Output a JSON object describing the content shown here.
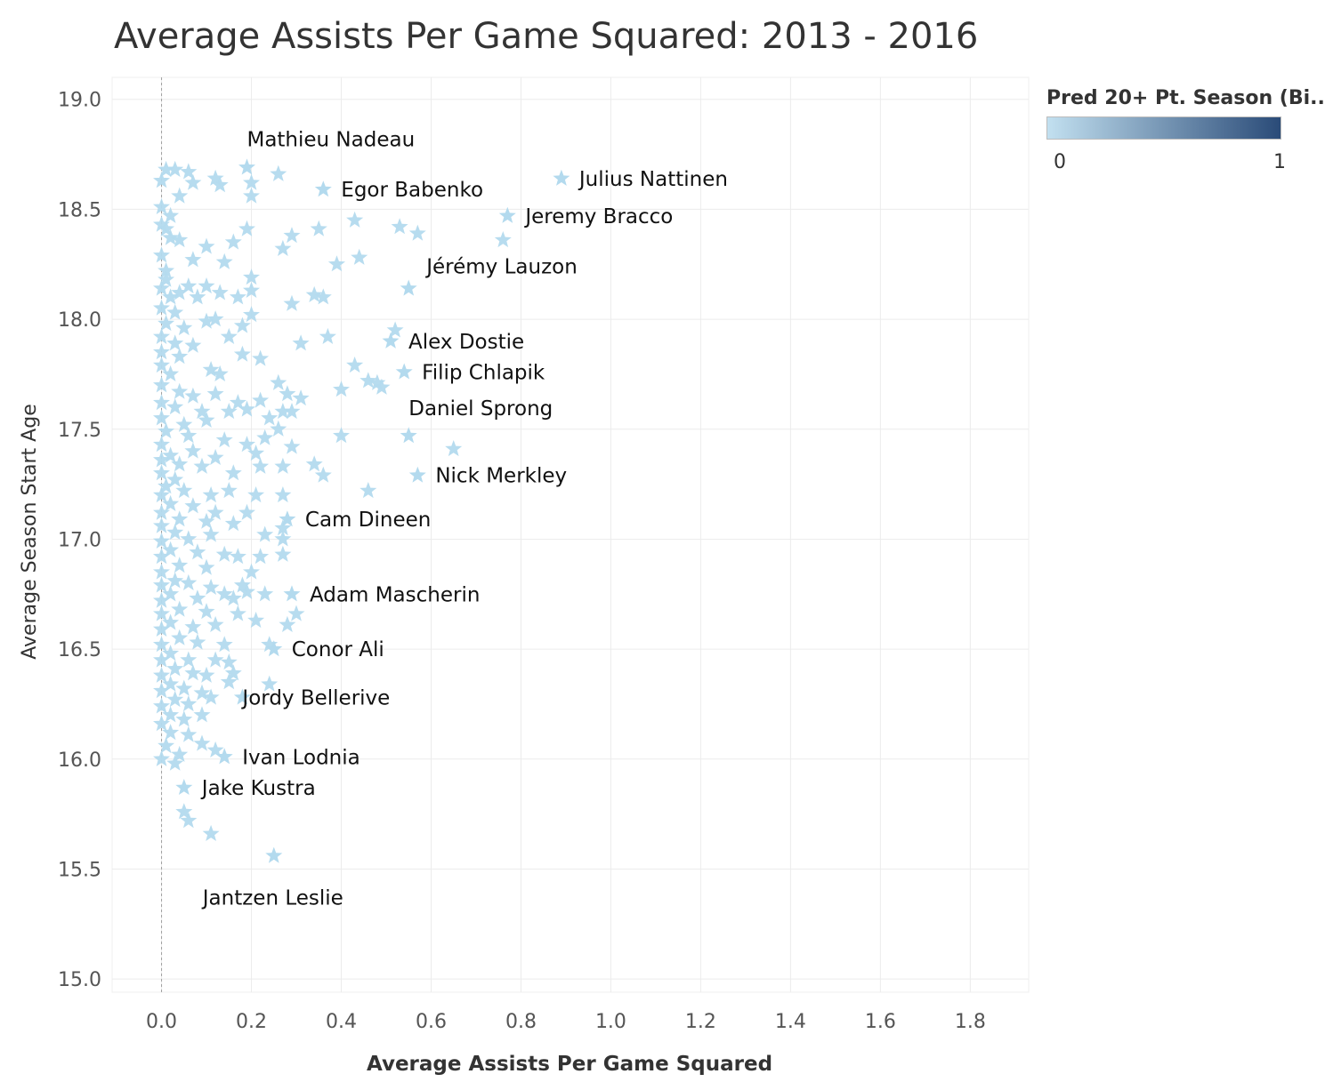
{
  "title": "Average Assists Per Game Squared: 2013 - 2016",
  "legend": {
    "title": "Pred 20+ Pt. Season (Bi..",
    "min_label": "0",
    "max_label": "1",
    "color_low": "#c2e0f0",
    "color_high": "#2a4b78",
    "marker_color": "#b3daee",
    "placement": "top-right"
  },
  "chart_data": {
    "type": "scatter",
    "marker": "star",
    "title": "Average Assists Per Game Squared: 2013 - 2016",
    "xlabel": "Average Assists Per Game Squared",
    "ylabel": "Average Season Start Age",
    "xlim": [
      -0.11,
      1.93
    ],
    "ylim": [
      14.94,
      19.1
    ],
    "xticks": [
      "0.0",
      "0.2",
      "0.4",
      "0.6",
      "0.8",
      "1.0",
      "1.2",
      "1.4",
      "1.6",
      "1.8"
    ],
    "yticks": [
      "15.0",
      "15.5",
      "16.0",
      "16.5",
      "17.0",
      "17.5",
      "18.0",
      "18.5",
      "19.0"
    ],
    "grid": true,
    "reference_line_x": 0,
    "labeled_points": [
      {
        "label": "Julius  Nattinen",
        "x": 0.89,
        "y": 18.64
      },
      {
        "label": "Mathieu Nadeau",
        "x": 0.19,
        "y": 18.69
      },
      {
        "label": "Egor Babenko",
        "x": 0.36,
        "y": 18.59
      },
      {
        "label": "Jeremy Bracco",
        "x": 0.77,
        "y": 18.47
      },
      {
        "label": "Jérémy Lauzon",
        "x": 0.55,
        "y": 18.14
      },
      {
        "label": "Alex Dostie",
        "x": 0.51,
        "y": 17.9
      },
      {
        "label": "Filip Chlapik",
        "x": 0.54,
        "y": 17.76
      },
      {
        "label": "Daniel Sprong",
        "x": 0.55,
        "y": 17.47
      },
      {
        "label": "Nick Merkley",
        "x": 0.57,
        "y": 17.29
      },
      {
        "label": "Cam Dineen",
        "x": 0.28,
        "y": 17.09
      },
      {
        "label": "Adam Mascherin",
        "x": 0.29,
        "y": 16.75
      },
      {
        "label": "Conor Ali",
        "x": 0.25,
        "y": 16.5
      },
      {
        "label": "Jordy Bellerive",
        "x": 0.18,
        "y": 16.28
      },
      {
        "label": "Ivan Lodnia",
        "x": 0.14,
        "y": 16.01
      },
      {
        "label": "Jake Kustra",
        "x": 0.05,
        "y": 15.87
      },
      {
        "label": "Jantzen Leslie",
        "x": 0.25,
        "y": 15.56
      }
    ],
    "unlabeled_points": [
      [
        0.01,
        18.68
      ],
      [
        0.03,
        18.68
      ],
      [
        0.06,
        18.67
      ],
      [
        0.0,
        18.63
      ],
      [
        0.07,
        18.62
      ],
      [
        0.12,
        18.64
      ],
      [
        0.13,
        18.61
      ],
      [
        0.2,
        18.62
      ],
      [
        0.26,
        18.66
      ],
      [
        0.04,
        18.56
      ],
      [
        0.2,
        18.56
      ],
      [
        0.0,
        18.51
      ],
      [
        0.02,
        18.47
      ],
      [
        0.43,
        18.45
      ],
      [
        0.0,
        18.43
      ],
      [
        0.01,
        18.41
      ],
      [
        0.19,
        18.41
      ],
      [
        0.29,
        18.38
      ],
      [
        0.35,
        18.41
      ],
      [
        0.53,
        18.42
      ],
      [
        0.57,
        18.39
      ],
      [
        0.76,
        18.36
      ],
      [
        0.02,
        18.37
      ],
      [
        0.04,
        18.36
      ],
      [
        0.1,
        18.33
      ],
      [
        0.16,
        18.35
      ],
      [
        0.27,
        18.32
      ],
      [
        0.0,
        18.29
      ],
      [
        0.07,
        18.27
      ],
      [
        0.14,
        18.26
      ],
      [
        0.39,
        18.25
      ],
      [
        0.44,
        18.28
      ],
      [
        0.01,
        18.22
      ],
      [
        0.01,
        18.18
      ],
      [
        0.2,
        18.19
      ],
      [
        0.0,
        18.14
      ],
      [
        0.02,
        18.1
      ],
      [
        0.04,
        18.12
      ],
      [
        0.06,
        18.15
      ],
      [
        0.08,
        18.1
      ],
      [
        0.1,
        18.15
      ],
      [
        0.13,
        18.12
      ],
      [
        0.17,
        18.1
      ],
      [
        0.2,
        18.13
      ],
      [
        0.29,
        18.07
      ],
      [
        0.34,
        18.11
      ],
      [
        0.36,
        18.1
      ],
      [
        0.0,
        18.05
      ],
      [
        0.03,
        18.03
      ],
      [
        0.2,
        18.02
      ],
      [
        0.01,
        17.98
      ],
      [
        0.05,
        17.96
      ],
      [
        0.1,
        17.99
      ],
      [
        0.12,
        18.0
      ],
      [
        0.18,
        17.97
      ],
      [
        0.52,
        17.95
      ],
      [
        0.0,
        17.92
      ],
      [
        0.03,
        17.89
      ],
      [
        0.07,
        17.88
      ],
      [
        0.15,
        17.92
      ],
      [
        0.31,
        17.89
      ],
      [
        0.37,
        17.92
      ],
      [
        0.0,
        17.85
      ],
      [
        0.04,
        17.83
      ],
      [
        0.18,
        17.84
      ],
      [
        0.22,
        17.82
      ],
      [
        0.43,
        17.79
      ],
      [
        0.0,
        17.79
      ],
      [
        0.02,
        17.75
      ],
      [
        0.11,
        17.77
      ],
      [
        0.13,
        17.75
      ],
      [
        0.26,
        17.71
      ],
      [
        0.46,
        17.72
      ],
      [
        0.48,
        17.71
      ],
      [
        0.49,
        17.69
      ],
      [
        0.0,
        17.7
      ],
      [
        0.04,
        17.67
      ],
      [
        0.07,
        17.65
      ],
      [
        0.12,
        17.66
      ],
      [
        0.17,
        17.62
      ],
      [
        0.22,
        17.63
      ],
      [
        0.28,
        17.66
      ],
      [
        0.31,
        17.64
      ],
      [
        0.4,
        17.68
      ],
      [
        0.0,
        17.62
      ],
      [
        0.03,
        17.6
      ],
      [
        0.09,
        17.58
      ],
      [
        0.15,
        17.58
      ],
      [
        0.19,
        17.59
      ],
      [
        0.27,
        17.58
      ],
      [
        0.29,
        17.58
      ],
      [
        0.0,
        17.55
      ],
      [
        0.05,
        17.52
      ],
      [
        0.1,
        17.54
      ],
      [
        0.24,
        17.55
      ],
      [
        0.26,
        17.5
      ],
      [
        0.01,
        17.49
      ],
      [
        0.06,
        17.47
      ],
      [
        0.14,
        17.45
      ],
      [
        0.19,
        17.43
      ],
      [
        0.23,
        17.46
      ],
      [
        0.29,
        17.42
      ],
      [
        0.4,
        17.47
      ],
      [
        0.65,
        17.41
      ],
      [
        0.0,
        17.43
      ],
      [
        0.02,
        17.38
      ],
      [
        0.07,
        17.4
      ],
      [
        0.12,
        17.37
      ],
      [
        0.21,
        17.39
      ],
      [
        0.0,
        17.36
      ],
      [
        0.04,
        17.34
      ],
      [
        0.09,
        17.33
      ],
      [
        0.22,
        17.33
      ],
      [
        0.27,
        17.33
      ],
      [
        0.34,
        17.34
      ],
      [
        0.36,
        17.29
      ],
      [
        0.0,
        17.3
      ],
      [
        0.03,
        17.27
      ],
      [
        0.16,
        17.3
      ],
      [
        0.01,
        17.24
      ],
      [
        0.05,
        17.22
      ],
      [
        0.11,
        17.2
      ],
      [
        0.15,
        17.22
      ],
      [
        0.21,
        17.2
      ],
      [
        0.27,
        17.2
      ],
      [
        0.46,
        17.22
      ],
      [
        0.0,
        17.2
      ],
      [
        0.02,
        17.16
      ],
      [
        0.07,
        17.15
      ],
      [
        0.12,
        17.12
      ],
      [
        0.19,
        17.12
      ],
      [
        0.0,
        17.12
      ],
      [
        0.04,
        17.09
      ],
      [
        0.1,
        17.08
      ],
      [
        0.16,
        17.07
      ],
      [
        0.27,
        17.05
      ],
      [
        0.0,
        17.06
      ],
      [
        0.03,
        17.03
      ],
      [
        0.06,
        17.0
      ],
      [
        0.11,
        17.02
      ],
      [
        0.23,
        17.02
      ],
      [
        0.27,
        17.0
      ],
      [
        0.0,
        16.99
      ],
      [
        0.02,
        16.95
      ],
      [
        0.08,
        16.94
      ],
      [
        0.14,
        16.93
      ],
      [
        0.17,
        16.92
      ],
      [
        0.22,
        16.92
      ],
      [
        0.27,
        16.93
      ],
      [
        0.0,
        16.92
      ],
      [
        0.04,
        16.88
      ],
      [
        0.1,
        16.87
      ],
      [
        0.2,
        16.85
      ],
      [
        0.0,
        16.85
      ],
      [
        0.03,
        16.81
      ],
      [
        0.06,
        16.8
      ],
      [
        0.11,
        16.78
      ],
      [
        0.18,
        16.79
      ],
      [
        0.19,
        16.76
      ],
      [
        0.0,
        16.79
      ],
      [
        0.02,
        16.75
      ],
      [
        0.08,
        16.73
      ],
      [
        0.14,
        16.75
      ],
      [
        0.23,
        16.75
      ],
      [
        0.16,
        16.73
      ],
      [
        0.0,
        16.72
      ],
      [
        0.04,
        16.68
      ],
      [
        0.1,
        16.67
      ],
      [
        0.17,
        16.66
      ],
      [
        0.3,
        16.66
      ],
      [
        0.0,
        16.66
      ],
      [
        0.02,
        16.62
      ],
      [
        0.07,
        16.6
      ],
      [
        0.12,
        16.61
      ],
      [
        0.21,
        16.63
      ],
      [
        0.28,
        16.61
      ],
      [
        0.0,
        16.59
      ],
      [
        0.04,
        16.55
      ],
      [
        0.08,
        16.53
      ],
      [
        0.14,
        16.52
      ],
      [
        0.24,
        16.52
      ],
      [
        0.0,
        16.52
      ],
      [
        0.02,
        16.48
      ],
      [
        0.06,
        16.45
      ],
      [
        0.12,
        16.45
      ],
      [
        0.15,
        16.44
      ],
      [
        0.0,
        16.45
      ],
      [
        0.03,
        16.41
      ],
      [
        0.07,
        16.39
      ],
      [
        0.1,
        16.38
      ],
      [
        0.16,
        16.39
      ],
      [
        0.0,
        16.38
      ],
      [
        0.02,
        16.34
      ],
      [
        0.05,
        16.32
      ],
      [
        0.09,
        16.3
      ],
      [
        0.15,
        16.35
      ],
      [
        0.24,
        16.34
      ],
      [
        0.0,
        16.31
      ],
      [
        0.03,
        16.27
      ],
      [
        0.06,
        16.25
      ],
      [
        0.11,
        16.28
      ],
      [
        0.0,
        16.24
      ],
      [
        0.02,
        16.2
      ],
      [
        0.05,
        16.18
      ],
      [
        0.09,
        16.2
      ],
      [
        0.0,
        16.16
      ],
      [
        0.02,
        16.12
      ],
      [
        0.06,
        16.11
      ],
      [
        0.09,
        16.07
      ],
      [
        0.01,
        16.06
      ],
      [
        0.04,
        16.02
      ],
      [
        0.12,
        16.04
      ],
      [
        0.0,
        16.0
      ],
      [
        0.03,
        15.98
      ],
      [
        0.05,
        15.76
      ],
      [
        0.06,
        15.72
      ],
      [
        0.11,
        15.66
      ]
    ]
  }
}
